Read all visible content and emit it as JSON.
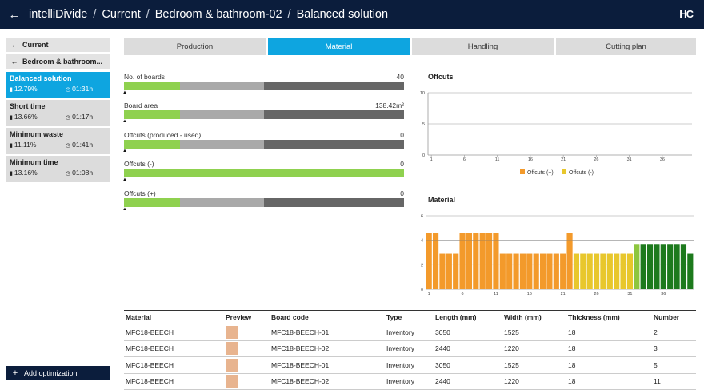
{
  "header": {
    "app": "intelliDivide",
    "crumb1": "Current",
    "crumb2": "Bedroom & bathroom-02",
    "crumb3": "Balanced solution",
    "logo": "HC"
  },
  "sidebar": {
    "current": "Current",
    "project": "Bedroom & bathroom...",
    "options": [
      {
        "title": "Balanced solution",
        "pct": "12.79%",
        "time": "01:31h"
      },
      {
        "title": "Short time",
        "pct": "13.66%",
        "time": "01:17h"
      },
      {
        "title": "Minimum waste",
        "pct": "11.11%",
        "time": "01:41h"
      },
      {
        "title": "Minimum time",
        "pct": "13.16%",
        "time": "01:08h"
      }
    ],
    "add_label": "Add optimization"
  },
  "tabs": [
    "Production",
    "Material",
    "Handling",
    "Cutting plan"
  ],
  "metrics": [
    {
      "label": "No. of boards",
      "value": "40",
      "fill": 0.2
    },
    {
      "label": "Board area",
      "value": "138.42m²",
      "fill": 0.2
    },
    {
      "label": "Offcuts (produced - used)",
      "value": "0",
      "fill": 0.2
    },
    {
      "label": "Offcuts (-)",
      "value": "0",
      "fill": 1.0
    },
    {
      "label": "Offcuts (+)",
      "value": "0",
      "fill": 0.2
    }
  ],
  "offcuts_chart": {
    "title": "Offcuts",
    "yticks": [
      "10",
      "5",
      "0"
    ],
    "xticks": [
      "1",
      "6",
      "11",
      "16",
      "21",
      "26",
      "31",
      "36"
    ],
    "legend": [
      "Offcuts (+)",
      "Offcuts (-)"
    ]
  },
  "chart_data": {
    "type": "bar",
    "title": "Material",
    "ylim": [
      0,
      6
    ],
    "yticks": [
      "6",
      "4",
      "2",
      "0"
    ],
    "xticks": [
      "1",
      "6",
      "11",
      "16",
      "21",
      "26",
      "31",
      "36"
    ],
    "values": [
      4.6,
      4.6,
      2.9,
      2.9,
      2.9,
      4.6,
      4.6,
      4.6,
      4.6,
      4.6,
      4.6,
      2.9,
      2.9,
      2.9,
      2.9,
      2.9,
      2.9,
      2.9,
      2.9,
      2.9,
      2.9,
      4.6,
      2.9,
      2.9,
      2.9,
      2.9,
      2.9,
      2.9,
      2.9,
      2.9,
      2.9,
      3.7,
      3.7,
      3.7,
      3.7,
      3.7,
      3.7,
      3.7,
      3.7,
      2.9
    ],
    "colors": [
      "#f39a2b",
      "#f39a2b",
      "#f39a2b",
      "#f39a2b",
      "#f39a2b",
      "#f39a2b",
      "#f39a2b",
      "#f39a2b",
      "#f39a2b",
      "#f39a2b",
      "#f39a2b",
      "#f39a2b",
      "#f39a2b",
      "#f39a2b",
      "#f39a2b",
      "#f39a2b",
      "#f39a2b",
      "#f39a2b",
      "#f39a2b",
      "#f39a2b",
      "#f39a2b",
      "#f39a2b",
      "#e8c72c",
      "#e8c72c",
      "#e8c72c",
      "#e8c72c",
      "#e8c72c",
      "#e8c72c",
      "#e8c72c",
      "#e8c72c",
      "#e8c72c",
      "#8dc63f",
      "#1d7a1d",
      "#1d7a1d",
      "#1d7a1d",
      "#1d7a1d",
      "#1d7a1d",
      "#1d7a1d",
      "#1d7a1d",
      "#1d7a1d"
    ]
  },
  "table": {
    "headers": [
      "Material",
      "Preview",
      "Board code",
      "Type",
      "Length (mm)",
      "Width (mm)",
      "Thickness (mm)",
      "Number"
    ],
    "rows": [
      [
        "MFC18-BEECH",
        "",
        "MFC18-BEECH-01",
        "Inventory",
        "3050",
        "1525",
        "18",
        "2"
      ],
      [
        "MFC18-BEECH",
        "",
        "MFC18-BEECH-02",
        "Inventory",
        "2440",
        "1220",
        "18",
        "3"
      ],
      [
        "MFC18-BEECH",
        "",
        "MFC18-BEECH-01",
        "Inventory",
        "3050",
        "1525",
        "18",
        "5"
      ],
      [
        "MFC18-BEECH",
        "",
        "MFC18-BEECH-02",
        "Inventory",
        "2440",
        "1220",
        "18",
        "11"
      ]
    ]
  },
  "colors": {
    "navy": "#0b1d3c",
    "accent": "#0ea5e0",
    "green": "#8fd14f",
    "grey1": "#a9a9a9",
    "grey2": "#666666"
  }
}
